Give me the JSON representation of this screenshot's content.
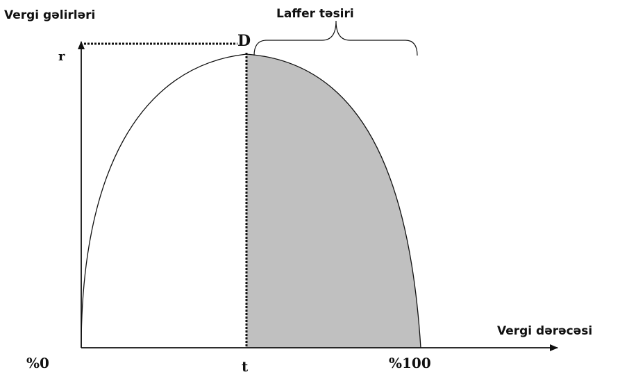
{
  "diagram": {
    "y_axis_label": "Vergi gəlirləri",
    "x_axis_label": "Vergi dərəcəsi",
    "laffer_effect_label": "Laffer təsiri",
    "peak_point_label": "D",
    "max_revenue_label": "r",
    "optimal_rate_label": "t",
    "origin_label": "%0",
    "full_rate_label": "%100",
    "colors": {
      "shaded_region": "#c0c0c0",
      "lines": "#111111"
    }
  }
}
